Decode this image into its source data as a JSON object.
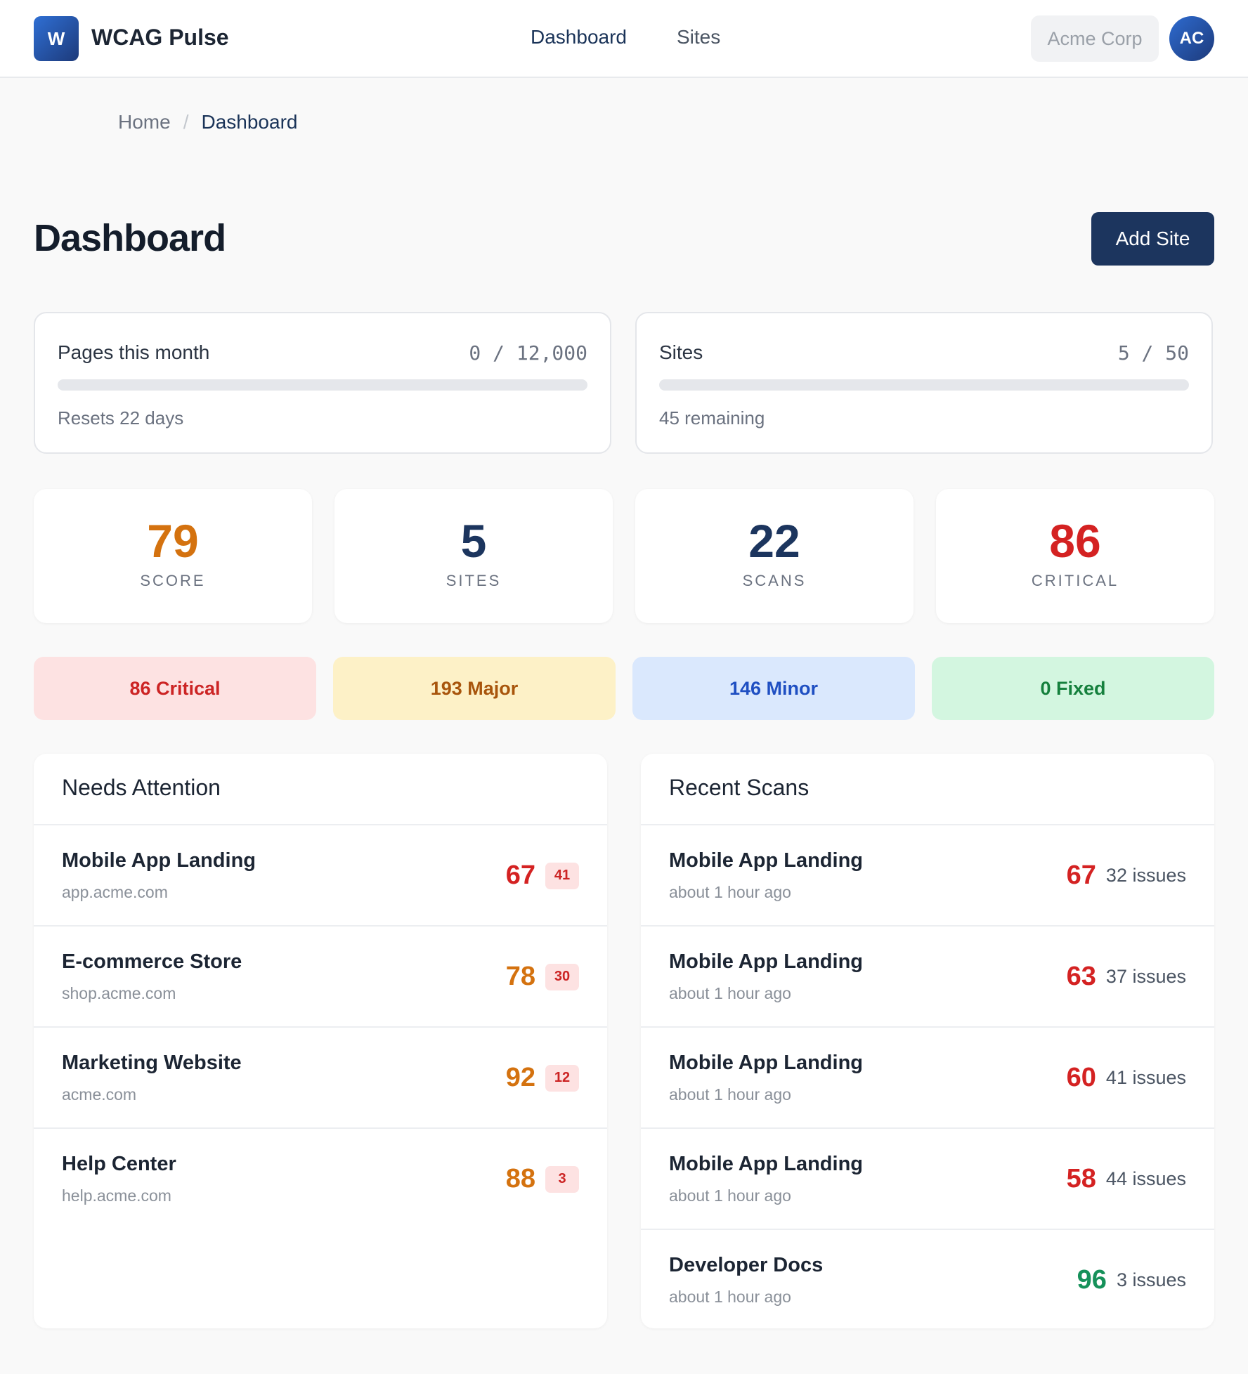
{
  "header": {
    "logo_letter": "W",
    "app_name": "WCAG Pulse",
    "nav": {
      "dashboard": "Dashboard",
      "sites": "Sites"
    },
    "org": "Acme Corp",
    "avatar_initials": "AC"
  },
  "breadcrumb": {
    "home": "Home",
    "separator": "/",
    "current": "Dashboard"
  },
  "page": {
    "title": "Dashboard",
    "add_site_label": "Add Site"
  },
  "usage": {
    "pages": {
      "label": "Pages this month",
      "value": "0 / 12,000",
      "note": "Resets 22 days",
      "progress": 0
    },
    "sites": {
      "label": "Sites",
      "value": "5 / 50",
      "note": "45 remaining",
      "progress": 0
    }
  },
  "stats": [
    {
      "value": "79",
      "label": "SCORE",
      "color": "#d4720f"
    },
    {
      "value": "5",
      "label": "SITES",
      "color": "#1c355e"
    },
    {
      "value": "22",
      "label": "SCANS",
      "color": "#1c355e"
    },
    {
      "value": "86",
      "label": "CRITICAL",
      "color": "#d42222"
    }
  ],
  "severity": [
    {
      "label": "86 Critical",
      "bg": "#fde2e2",
      "fg": "#cc2424"
    },
    {
      "label": "193 Major",
      "bg": "#fdf1c7",
      "fg": "#a8550c"
    },
    {
      "label": "146 Minor",
      "bg": "#dae8fd",
      "fg": "#1f4fc2"
    },
    {
      "label": "0 Fixed",
      "bg": "#d3f6e0",
      "fg": "#15803d"
    }
  ],
  "needs_attention": {
    "title": "Needs Attention",
    "rows": [
      {
        "name": "Mobile App Landing",
        "domain": "app.acme.com",
        "score": "67",
        "score_color": "#d42222",
        "count": "41"
      },
      {
        "name": "E-commerce Store",
        "domain": "shop.acme.com",
        "score": "78",
        "score_color": "#d4720f",
        "count": "30"
      },
      {
        "name": "Marketing Website",
        "domain": "acme.com",
        "score": "92",
        "score_color": "#d4720f",
        "count": "12"
      },
      {
        "name": "Help Center",
        "domain": "help.acme.com",
        "score": "88",
        "score_color": "#d4720f",
        "count": "3"
      }
    ]
  },
  "recent_scans": {
    "title": "Recent Scans",
    "rows": [
      {
        "name": "Mobile App Landing",
        "time": "about 1 hour ago",
        "score": "67",
        "score_color": "#d42222",
        "issues": "32 issues"
      },
      {
        "name": "Mobile App Landing",
        "time": "about 1 hour ago",
        "score": "63",
        "score_color": "#d42222",
        "issues": "37 issues"
      },
      {
        "name": "Mobile App Landing",
        "time": "about 1 hour ago",
        "score": "60",
        "score_color": "#d42222",
        "issues": "41 issues"
      },
      {
        "name": "Mobile App Landing",
        "time": "about 1 hour ago",
        "score": "58",
        "score_color": "#d42222",
        "issues": "44 issues"
      },
      {
        "name": "Developer Docs",
        "time": "about 1 hour ago",
        "score": "96",
        "score_color": "#16915a",
        "issues": "3 issues"
      }
    ]
  }
}
